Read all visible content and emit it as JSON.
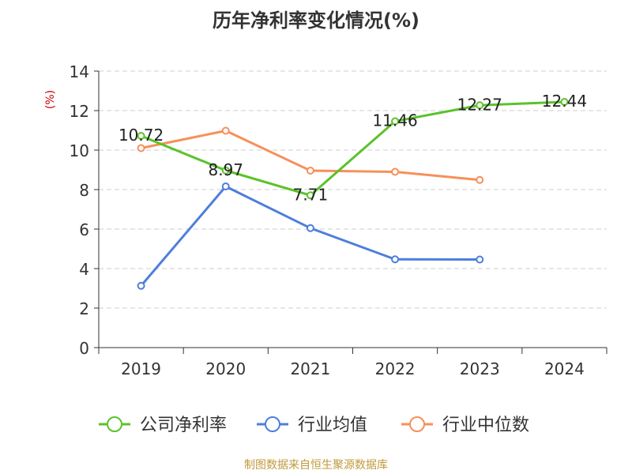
{
  "chart_data": {
    "type": "line",
    "title": "历年净利率变化情况(%)",
    "ylabel": "(%)",
    "xlabel": "",
    "categories": [
      "2019",
      "2020",
      "2021",
      "2022",
      "2023",
      "2024"
    ],
    "ylim": [
      0,
      14
    ],
    "yticks": [
      0,
      2,
      4,
      6,
      8,
      10,
      12,
      14
    ],
    "grid": "dashed-horizontal",
    "legend_position": "bottom",
    "series": [
      {
        "name": "公司净利率",
        "color": "#5ac329",
        "values": [
          10.72,
          8.97,
          7.71,
          11.46,
          12.27,
          12.44
        ],
        "labels": [
          "10.72",
          "8.97",
          "7.71",
          "11.46",
          "12.27",
          "12.44"
        ]
      },
      {
        "name": "行业均值",
        "color": "#4d7fdb",
        "values": [
          3.13,
          8.16,
          6.05,
          4.47,
          4.46,
          null
        ],
        "labels": null
      },
      {
        "name": "行业中位数",
        "color": "#f6905a",
        "values": [
          10.1,
          10.98,
          8.96,
          8.9,
          8.49,
          null
        ],
        "labels": null
      }
    ]
  },
  "footer": {
    "source": "制图数据来自恒生聚源数据库"
  }
}
